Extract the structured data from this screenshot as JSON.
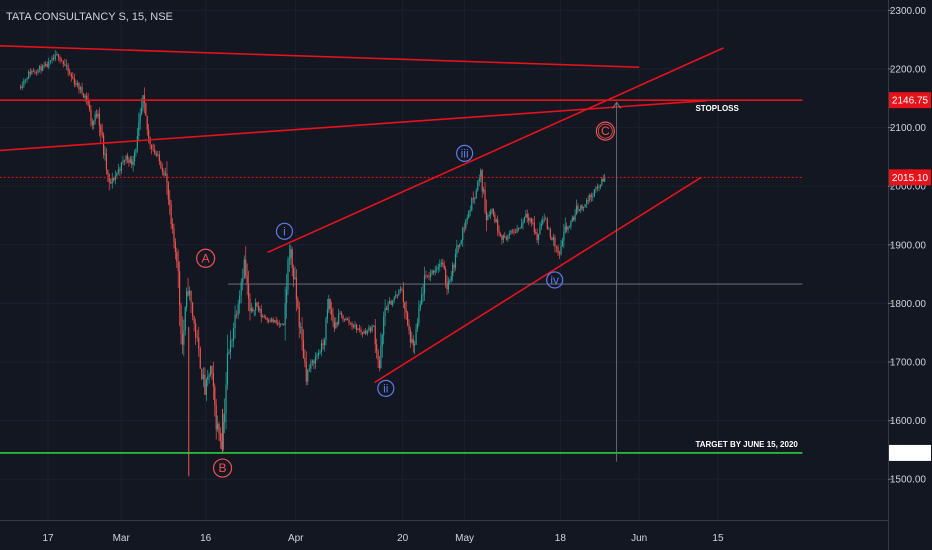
{
  "symbol_title": "TATA CONSULTANCY S, 15, NSE",
  "colors": {
    "background": "#131722",
    "up": "#26a69a",
    "down": "#ef5350",
    "trendline": "#e8121b",
    "target_line": "#2ecc40",
    "corrective_wave": "#ef5350",
    "impulse_wave": "#5f7be8"
  },
  "chart_data": {
    "type": "candlestick",
    "title": "TATA CONSULTANCY S, 15, NSE",
    "ylim": [
      1445,
      2325
    ],
    "y_ticks": [
      "2300.00",
      "2200.00",
      "2100.00",
      "2000.00",
      "1900.00",
      "1800.00",
      "1700.00",
      "1600.00",
      "1500.00"
    ],
    "x_ticks": [
      "17",
      "Mar",
      "16",
      "Apr",
      "20",
      "May",
      "18",
      "Jun",
      "15"
    ],
    "price_tags": [
      {
        "value": "2146.75",
        "style": "red"
      },
      {
        "value": "2015.10",
        "style": "red"
      },
      {
        "value": "1544.85",
        "style": "green"
      }
    ],
    "annotations": [
      "STOPLOSS",
      "TARGET BY JUNE 15, 2020"
    ],
    "wave_labels": {
      "corrective": [
        "A",
        "B",
        "C"
      ],
      "impulse": [
        "i",
        "ii",
        "iii",
        "iv"
      ]
    },
    "price_path": [
      [
        "Feb 12",
        2170
      ],
      [
        "Feb 14",
        2195
      ],
      [
        "Feb 17",
        2205
      ],
      [
        "Feb 19",
        2225
      ],
      [
        "Feb 21",
        2190
      ],
      [
        "Feb 24",
        2150
      ],
      [
        "Feb 25",
        2105
      ],
      [
        "Feb 26",
        2130
      ],
      [
        "Feb 27",
        2060
      ],
      [
        "Feb 28",
        2000
      ],
      [
        "Mar 2",
        2050
      ],
      [
        "Mar 3",
        2040
      ],
      [
        "Mar 4",
        2080
      ],
      [
        "Mar 5",
        2145
      ],
      [
        "Mar 6",
        2080
      ],
      [
        "Mar 9",
        2020
      ],
      [
        "Mar 10",
        1930
      ],
      [
        "Mar 11",
        1880
      ],
      [
        "Mar 12",
        1730
      ],
      [
        "Mar 13",
        1830
      ],
      [
        "Mar 16",
        1650
      ],
      [
        "Mar 17",
        1690
      ],
      [
        "Mar 18",
        1600
      ],
      [
        "Mar 19",
        1560
      ],
      [
        "Mar 20",
        1700
      ],
      [
        "Mar 23",
        1870
      ],
      [
        "Mar 24",
        1780
      ],
      [
        "Mar 25",
        1800
      ],
      [
        "Mar 26",
        1780
      ],
      [
        "Mar 30",
        1760
      ],
      [
        "Mar 31",
        1900
      ],
      [
        "Apr 1",
        1830
      ],
      [
        "Apr 2",
        1750
      ],
      [
        "Apr 3",
        1680
      ],
      [
        "Apr 6",
        1730
      ],
      [
        "Apr 7",
        1800
      ],
      [
        "Apr 8",
        1760
      ],
      [
        "Apr 9",
        1780
      ],
      [
        "Apr 13",
        1750
      ],
      [
        "Apr 15",
        1760
      ],
      [
        "Apr 16",
        1690
      ],
      [
        "Apr 17",
        1790
      ],
      [
        "Apr 20",
        1825
      ],
      [
        "Apr 21",
        1760
      ],
      [
        "Apr 22",
        1720
      ],
      [
        "Apr 23",
        1780
      ],
      [
        "Apr 24",
        1840
      ],
      [
        "Apr 27",
        1870
      ],
      [
        "Apr 28",
        1830
      ],
      [
        "Apr 29",
        1860
      ],
      [
        "Apr 30",
        1900
      ],
      [
        "May 4",
        2020
      ],
      [
        "May 5",
        1950
      ],
      [
        "May 6",
        1960
      ],
      [
        "May 7",
        1930
      ],
      [
        "May 8",
        1910
      ],
      [
        "May 11",
        1930
      ],
      [
        "May 12",
        1955
      ],
      [
        "May 13",
        1940
      ],
      [
        "May 14",
        1910
      ],
      [
        "May 15",
        1950
      ],
      [
        "May 18",
        1880
      ],
      [
        "May 19",
        1925
      ],
      [
        "May 20",
        1935
      ],
      [
        "May 21",
        1960
      ],
      [
        "May 22",
        1965
      ],
      [
        "May 25",
        2000
      ],
      [
        "May 26",
        2015
      ]
    ],
    "trendlines": [
      {
        "from": [
          "Feb 7",
          2240
        ],
        "to": [
          "Jun 1",
          2203
        ],
        "color": "red"
      },
      {
        "from": [
          "Feb 7",
          2146.75
        ],
        "to": [
          "Jun 30",
          2146.75
        ],
        "color": "red"
      },
      {
        "from": [
          "Feb 7",
          2060
        ],
        "to": [
          "Jun 13",
          2146
        ],
        "color": "red"
      },
      {
        "from": [
          "Mar 27",
          1887
        ],
        "to": [
          "Jun 16",
          2236
        ],
        "color": "red"
      },
      {
        "from": [
          "Apr 15",
          1665
        ],
        "to": [
          "Jun 12",
          2015
        ],
        "color": "red"
      },
      {
        "from": [
          "Feb 7",
          2015.1
        ],
        "to": [
          "Jun 30",
          2015.1
        ],
        "color": "red",
        "dashed": true
      },
      {
        "from": [
          "Feb 7",
          1544.85
        ],
        "to": [
          "Jun 30",
          1544.85
        ],
        "color": "green"
      },
      {
        "from": [
          "Mar 20",
          1833
        ],
        "to": [
          "Jun 30",
          1833
        ],
        "color": "grey"
      },
      {
        "from": [
          "May 28",
          1530
        ],
        "to": [
          "May 28",
          2143
        ],
        "color": "grey",
        "arrow": true
      }
    ]
  }
}
